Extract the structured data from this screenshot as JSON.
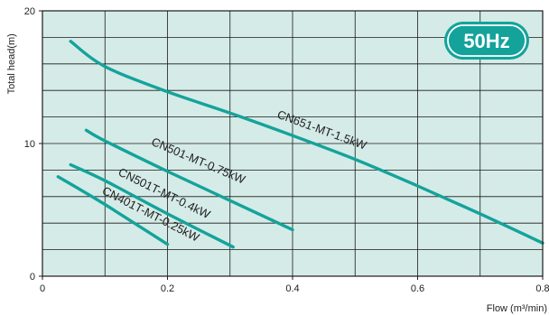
{
  "chart_data": {
    "type": "line",
    "title": "",
    "xlabel": "Flow (m³/min)",
    "ylabel": "Total head(m)",
    "xlim": [
      0,
      0.8
    ],
    "ylim": [
      0,
      20
    ],
    "x_ticks": [
      "0",
      "0.2",
      "0.4",
      "0.6",
      "0.8"
    ],
    "y_ticks": [
      "0",
      "10",
      "20"
    ],
    "grid": true,
    "badge": "50Hz",
    "colors": {
      "plot_background": "#d5ebe7",
      "grid": "#1a1a1a",
      "curve": "#14a39b",
      "badge": "#14a39b"
    },
    "series": [
      {
        "name": "CN651-MT-1.5kW",
        "x": [
          0.045,
          0.1,
          0.2,
          0.3,
          0.4,
          0.5,
          0.6,
          0.7,
          0.8
        ],
        "y": [
          17.7,
          15.8,
          13.9,
          12.3,
          10.6,
          8.8,
          6.8,
          4.7,
          2.5
        ]
      },
      {
        "name": "CN501-MT-0.75kW",
        "x": [
          0.07,
          0.1,
          0.2,
          0.3,
          0.4
        ],
        "y": [
          11.0,
          10.2,
          7.9,
          5.7,
          3.5
        ]
      },
      {
        "name": "CN501T-MT-0.4kW",
        "x": [
          0.045,
          0.1,
          0.2,
          0.305
        ],
        "y": [
          8.4,
          7.2,
          4.7,
          2.2
        ]
      },
      {
        "name": "CN401T-MT-0.25kW",
        "x": [
          0.025,
          0.1,
          0.2
        ],
        "y": [
          7.5,
          5.4,
          2.4
        ]
      }
    ]
  }
}
